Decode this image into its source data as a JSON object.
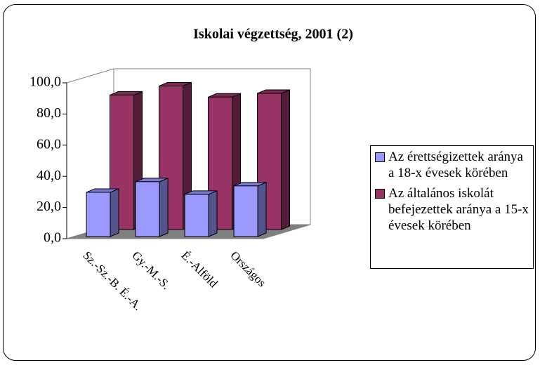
{
  "chart_data": {
    "type": "bar3d",
    "title": "Iskolai végzettség, 2001 (2)",
    "categories": [
      "Sz.-Sz.-B. É.-A.",
      "Gy.-M.-S.",
      "É.-Alföld",
      "Országos"
    ],
    "series": [
      {
        "name": "Az érettségizettek aránya a 18-x évesek körében",
        "color": "#9999ff",
        "values": [
          28.4,
          35.2,
          27.1,
          32.5
        ]
      },
      {
        "name": "Az általános iskolát befejezettek aránya a 15-x évesek körében",
        "color": "#993366",
        "values": [
          86.3,
          92.1,
          85.0,
          87.4
        ]
      }
    ],
    "ylim": [
      0,
      100
    ],
    "yticks": [
      {
        "value": 0,
        "label": "0,0"
      },
      {
        "value": 20,
        "label": "20,0"
      },
      {
        "value": 40,
        "label": "40,0"
      },
      {
        "value": 60,
        "label": "60,0"
      },
      {
        "value": 80,
        "label": "80,0"
      },
      {
        "value": 100,
        "label": "100,0"
      }
    ]
  }
}
